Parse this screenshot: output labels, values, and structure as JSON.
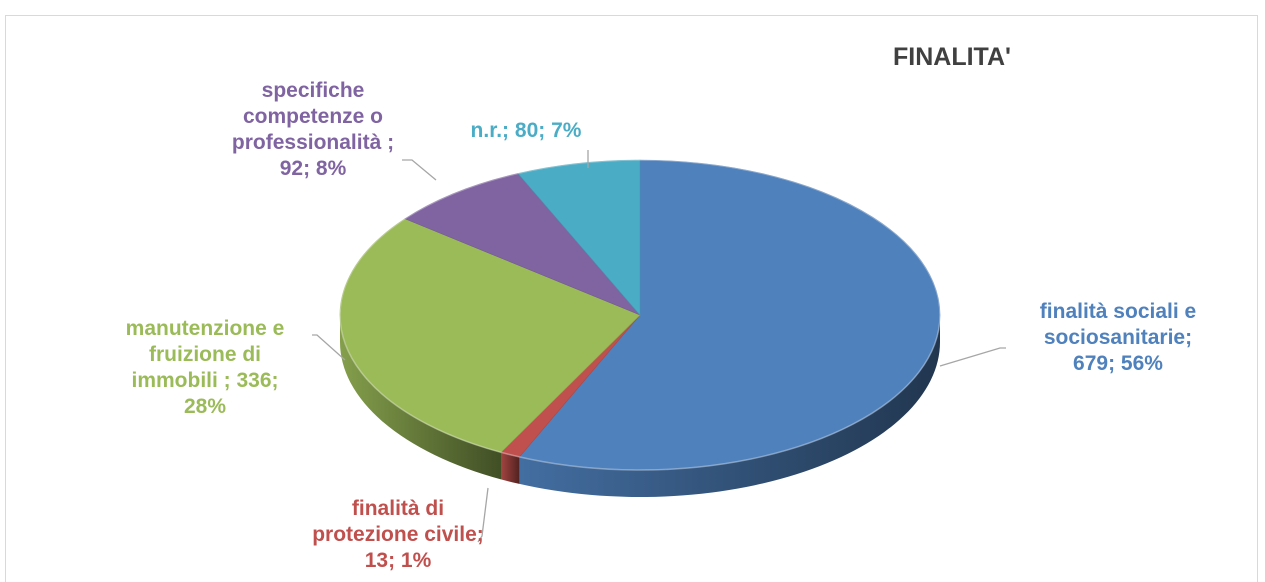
{
  "chart_data": {
    "type": "pie",
    "title": "FINALITA'",
    "slices": [
      {
        "name": "finalità sociali e sociosanitarie",
        "value": 679,
        "percent": 56,
        "label_lines": [
          "finalità sociali e",
          "sociosanitarie;",
          "679; 56%"
        ],
        "color": "#4f81bd",
        "text_color": "#4f81bd"
      },
      {
        "name": "finalità di protezione civile",
        "value": 13,
        "percent": 1,
        "label_lines": [
          "finalità di",
          "protezione civile;",
          "13; 1%"
        ],
        "color": "#c0504d",
        "text_color": "#c0504d"
      },
      {
        "name": "manutenzione e fruizione di immobili",
        "value": 336,
        "percent": 28,
        "label_lines": [
          "manutenzione e",
          "fruizione di",
          "immobili ; 336;",
          "28%"
        ],
        "color": "#9bbb59",
        "text_color": "#9bbb59"
      },
      {
        "name": "specifiche competenze o professionalità",
        "value": 92,
        "percent": 8,
        "label_lines": [
          "specifiche",
          "competenze o",
          "professionalità ;",
          "92; 8%"
        ],
        "color": "#8064a2",
        "text_color": "#8064a2"
      },
      {
        "name": "n.r.",
        "value": 80,
        "percent": 7,
        "label_lines": [
          "n.r.; 80; 7%"
        ],
        "color": "#4bacc6",
        "text_color": "#4bacc6"
      }
    ],
    "title_color": "#404040",
    "style": "3d-pie"
  }
}
